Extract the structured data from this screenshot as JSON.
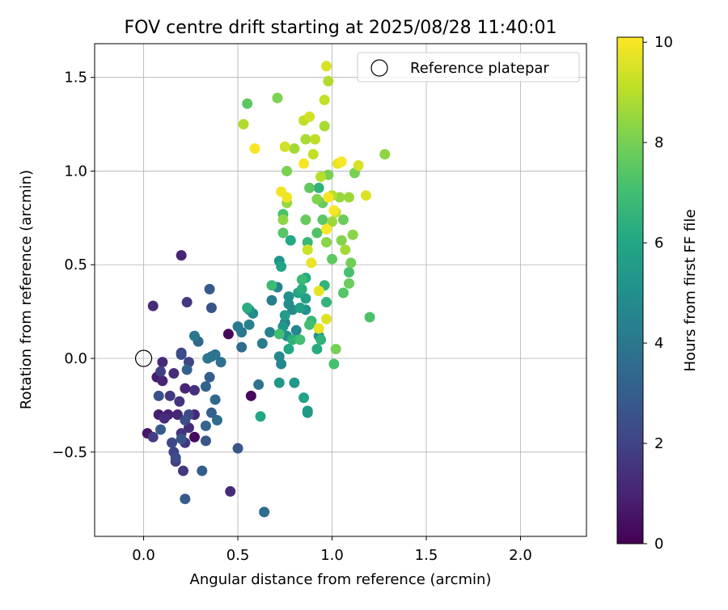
{
  "chart_data": {
    "type": "scatter",
    "title": "FOV centre drift starting at 2025/08/28 11:40:01",
    "xlabel": "Angular distance from reference (arcmin)",
    "ylabel": "Rotation from reference (arcmin)",
    "xlim": [
      -0.26,
      2.35
    ],
    "ylim": [
      -0.95,
      1.68
    ],
    "xticks": [
      "0.0",
      "0.5",
      "1.0",
      "1.5",
      "2.0"
    ],
    "xtick_values": [
      0,
      0.5,
      1.0,
      1.5,
      2.0
    ],
    "yticks": [
      "1.5",
      "1.0",
      "0.5",
      "0.0",
      "−0.5"
    ],
    "ytick_values": [
      1.5,
      1.0,
      0.5,
      0.0,
      -0.5
    ],
    "grid": true,
    "legend": {
      "position": "top-right",
      "entries": [
        "Reference platepar"
      ]
    },
    "reference_point": {
      "x": 0.0,
      "y": 0.0,
      "label": "Reference platepar"
    },
    "colorbar": {
      "label": "Hours from first FF file",
      "colormap": "viridis",
      "range": [
        0,
        10.1
      ],
      "ticks": [
        "0",
        "2",
        "4",
        "6",
        "8",
        "10"
      ],
      "tick_values": [
        0,
        2,
        4,
        6,
        8,
        10
      ]
    },
    "points": [
      {
        "x": 0.45,
        "y": 0.13,
        "h": 0.2
      },
      {
        "x": 0.57,
        "y": -0.2,
        "h": 0.2
      },
      {
        "x": 0.27,
        "y": -0.42,
        "h": 0.3
      },
      {
        "x": 0.02,
        "y": -0.4,
        "h": 0.6
      },
      {
        "x": 0.07,
        "y": -0.1,
        "h": 0.8
      },
      {
        "x": 0.08,
        "y": -0.3,
        "h": 0.8
      },
      {
        "x": 0.13,
        "y": -0.3,
        "h": 0.9
      },
      {
        "x": 0.1,
        "y": -0.12,
        "h": 1.0
      },
      {
        "x": 0.22,
        "y": -0.16,
        "h": 1.0
      },
      {
        "x": 0.2,
        "y": 0.55,
        "h": 1.0
      },
      {
        "x": 0.18,
        "y": -0.3,
        "h": 1.1
      },
      {
        "x": 0.27,
        "y": -0.3,
        "h": 1.1
      },
      {
        "x": 0.46,
        "y": -0.71,
        "h": 1.2
      },
      {
        "x": 0.05,
        "y": 0.28,
        "h": 1.2
      },
      {
        "x": 0.1,
        "y": -0.02,
        "h": 1.2
      },
      {
        "x": 0.11,
        "y": -0.32,
        "h": 1.3
      },
      {
        "x": 0.16,
        "y": -0.08,
        "h": 1.3
      },
      {
        "x": 0.24,
        "y": -0.37,
        "h": 1.3
      },
      {
        "x": 0.27,
        "y": -0.17,
        "h": 1.4
      },
      {
        "x": 0.19,
        "y": -0.23,
        "h": 1.5
      },
      {
        "x": 0.2,
        "y": -0.4,
        "h": 1.5
      },
      {
        "x": 0.22,
        "y": -0.45,
        "h": 1.6
      },
      {
        "x": 0.21,
        "y": -0.6,
        "h": 1.6
      },
      {
        "x": 0.23,
        "y": 0.3,
        "h": 1.7
      },
      {
        "x": 0.14,
        "y": -0.2,
        "h": 1.7
      },
      {
        "x": 0.17,
        "y": -0.55,
        "h": 1.8
      },
      {
        "x": 0.05,
        "y": -0.42,
        "h": 1.8
      },
      {
        "x": 0.09,
        "y": -0.07,
        "h": 1.9
      },
      {
        "x": 0.24,
        "y": -0.02,
        "h": 2.0
      },
      {
        "x": 0.16,
        "y": -0.5,
        "h": 2.0
      },
      {
        "x": 0.2,
        "y": 0.03,
        "h": 2.1
      },
      {
        "x": 0.15,
        "y": -0.45,
        "h": 2.2
      },
      {
        "x": 0.24,
        "y": -0.3,
        "h": 2.2
      },
      {
        "x": 0.17,
        "y": -0.53,
        "h": 2.3
      },
      {
        "x": 0.2,
        "y": 0.02,
        "h": 2.4
      },
      {
        "x": 0.22,
        "y": -0.33,
        "h": 2.4
      },
      {
        "x": 0.08,
        "y": -0.2,
        "h": 2.5
      },
      {
        "x": 0.36,
        "y": 0.27,
        "h": 2.6
      },
      {
        "x": 0.2,
        "y": -0.43,
        "h": 2.6
      },
      {
        "x": 0.33,
        "y": -0.44,
        "h": 2.7
      },
      {
        "x": 0.5,
        "y": -0.48,
        "h": 2.7
      },
      {
        "x": 0.35,
        "y": 0.37,
        "h": 2.8
      },
      {
        "x": 0.22,
        "y": -0.75,
        "h": 2.9
      },
      {
        "x": 0.09,
        "y": -0.38,
        "h": 2.9
      },
      {
        "x": 0.35,
        "y": -0.1,
        "h": 3.0
      },
      {
        "x": 0.31,
        "y": -0.6,
        "h": 3.0
      },
      {
        "x": 0.36,
        "y": -0.29,
        "h": 3.1
      },
      {
        "x": 0.23,
        "y": -0.06,
        "h": 3.1
      },
      {
        "x": 0.33,
        "y": -0.15,
        "h": 3.2
      },
      {
        "x": 0.29,
        "y": 0.09,
        "h": 3.3
      },
      {
        "x": 0.33,
        "y": -0.36,
        "h": 3.3
      },
      {
        "x": 0.38,
        "y": -0.22,
        "h": 3.4
      },
      {
        "x": 0.39,
        "y": -0.33,
        "h": 3.5
      },
      {
        "x": 0.52,
        "y": 0.06,
        "h": 3.5
      },
      {
        "x": 0.64,
        "y": -0.82,
        "h": 3.6
      },
      {
        "x": 0.36,
        "y": 0.01,
        "h": 3.6
      },
      {
        "x": 0.41,
        "y": -0.02,
        "h": 3.7
      },
      {
        "x": 0.38,
        "y": 0.02,
        "h": 3.8
      },
      {
        "x": 0.61,
        "y": -0.14,
        "h": 3.8
      },
      {
        "x": 0.34,
        "y": -0.0,
        "h": 3.9
      },
      {
        "x": 0.52,
        "y": 0.14,
        "h": 4.0
      },
      {
        "x": 0.27,
        "y": 0.12,
        "h": 4.0
      },
      {
        "x": 0.5,
        "y": 0.17,
        "h": 4.1
      },
      {
        "x": 0.56,
        "y": 0.26,
        "h": 4.2
      },
      {
        "x": 0.63,
        "y": 0.08,
        "h": 4.2
      },
      {
        "x": 0.75,
        "y": 0.19,
        "h": 4.3
      },
      {
        "x": 0.68,
        "y": 0.31,
        "h": 4.3
      },
      {
        "x": 0.56,
        "y": 0.18,
        "h": 4.4
      },
      {
        "x": 0.67,
        "y": 0.14,
        "h": 4.5
      },
      {
        "x": 0.71,
        "y": 0.38,
        "h": 4.5
      },
      {
        "x": 0.81,
        "y": 0.15,
        "h": 4.6
      },
      {
        "x": 0.73,
        "y": -0.03,
        "h": 4.6
      },
      {
        "x": 0.79,
        "y": 0.26,
        "h": 4.7
      },
      {
        "x": 0.72,
        "y": 0.01,
        "h": 4.8
      },
      {
        "x": 0.77,
        "y": 0.29,
        "h": 4.8
      },
      {
        "x": 0.58,
        "y": 0.24,
        "h": 4.9
      },
      {
        "x": 0.76,
        "y": 0.12,
        "h": 5.0
      },
      {
        "x": 0.77,
        "y": 0.33,
        "h": 5.0
      },
      {
        "x": 0.86,
        "y": 0.26,
        "h": 5.1
      },
      {
        "x": 0.93,
        "y": 0.12,
        "h": 5.1
      },
      {
        "x": 0.72,
        "y": 0.52,
        "h": 5.2
      },
      {
        "x": 0.74,
        "y": 0.17,
        "h": 5.3
      },
      {
        "x": 0.72,
        "y": -0.13,
        "h": 5.3
      },
      {
        "x": 0.8,
        "y": -0.13,
        "h": 5.4
      },
      {
        "x": 0.87,
        "y": -0.28,
        "h": 5.5
      },
      {
        "x": 0.87,
        "y": -0.29,
        "h": 5.5
      },
      {
        "x": 0.75,
        "y": 0.23,
        "h": 5.6
      },
      {
        "x": 0.86,
        "y": 0.32,
        "h": 5.7
      },
      {
        "x": 0.83,
        "y": 0.27,
        "h": 5.7
      },
      {
        "x": 0.85,
        "y": -0.21,
        "h": 5.8
      },
      {
        "x": 0.82,
        "y": 0.35,
        "h": 5.9
      },
      {
        "x": 0.73,
        "y": 0.49,
        "h": 5.9
      },
      {
        "x": 0.77,
        "y": 0.05,
        "h": 6.0
      },
      {
        "x": 0.62,
        "y": -0.31,
        "h": 6.0
      },
      {
        "x": 0.78,
        "y": 0.63,
        "h": 6.1
      },
      {
        "x": 0.92,
        "y": 0.05,
        "h": 6.2
      },
      {
        "x": 0.86,
        "y": 0.43,
        "h": 6.2
      },
      {
        "x": 0.84,
        "y": 0.37,
        "h": 6.3
      },
      {
        "x": 0.55,
        "y": 0.27,
        "h": 6.3
      },
      {
        "x": 0.79,
        "y": 0.1,
        "h": 6.4
      },
      {
        "x": 0.94,
        "y": 0.1,
        "h": 6.5
      },
      {
        "x": 0.93,
        "y": 0.91,
        "h": 6.5
      },
      {
        "x": 0.96,
        "y": 0.39,
        "h": 6.6
      },
      {
        "x": 0.97,
        "y": 0.3,
        "h": 6.6
      },
      {
        "x": 0.89,
        "y": 0.2,
        "h": 6.7
      },
      {
        "x": 0.87,
        "y": 0.62,
        "h": 6.7
      },
      {
        "x": 0.84,
        "y": 0.42,
        "h": 6.8
      },
      {
        "x": 0.68,
        "y": 0.39,
        "h": 6.9
      },
      {
        "x": 0.83,
        "y": 0.1,
        "h": 7.0
      },
      {
        "x": 0.88,
        "y": 0.18,
        "h": 7.0
      },
      {
        "x": 0.72,
        "y": 0.13,
        "h": 7.0
      },
      {
        "x": 1.01,
        "y": -0.03,
        "h": 7.1
      },
      {
        "x": 1.09,
        "y": 0.46,
        "h": 7.1
      },
      {
        "x": 1.2,
        "y": 0.22,
        "h": 7.2
      },
      {
        "x": 0.74,
        "y": 0.77,
        "h": 7.2
      },
      {
        "x": 0.92,
        "y": 0.67,
        "h": 7.3
      },
      {
        "x": 0.74,
        "y": 0.67,
        "h": 7.4
      },
      {
        "x": 1.06,
        "y": 0.35,
        "h": 7.4
      },
      {
        "x": 0.55,
        "y": 1.36,
        "h": 7.5
      },
      {
        "x": 0.95,
        "y": 0.74,
        "h": 7.5
      },
      {
        "x": 1.0,
        "y": 0.53,
        "h": 7.6
      },
      {
        "x": 0.88,
        "y": 0.91,
        "h": 7.6
      },
      {
        "x": 0.86,
        "y": 0.74,
        "h": 7.7
      },
      {
        "x": 0.95,
        "y": 0.83,
        "h": 7.7
      },
      {
        "x": 1.06,
        "y": 0.74,
        "h": 7.8
      },
      {
        "x": 1.09,
        "y": 0.4,
        "h": 7.8
      },
      {
        "x": 1.1,
        "y": 0.51,
        "h": 7.9
      },
      {
        "x": 1.02,
        "y": 0.05,
        "h": 8.0
      },
      {
        "x": 1.12,
        "y": 0.99,
        "h": 8.0
      },
      {
        "x": 0.98,
        "y": 0.98,
        "h": 8.0
      },
      {
        "x": 0.76,
        "y": 1.0,
        "h": 8.1
      },
      {
        "x": 0.71,
        "y": 1.39,
        "h": 8.1
      },
      {
        "x": 0.92,
        "y": 0.85,
        "h": 8.2
      },
      {
        "x": 1.05,
        "y": 0.63,
        "h": 8.2
      },
      {
        "x": 0.97,
        "y": 0.62,
        "h": 8.3
      },
      {
        "x": 1.11,
        "y": 0.66,
        "h": 8.3
      },
      {
        "x": 0.74,
        "y": 0.74,
        "h": 8.4
      },
      {
        "x": 1.28,
        "y": 1.09,
        "h": 8.4
      },
      {
        "x": 0.76,
        "y": 0.83,
        "h": 8.5
      },
      {
        "x": 1.04,
        "y": 0.86,
        "h": 8.5
      },
      {
        "x": 1.09,
        "y": 0.86,
        "h": 8.6
      },
      {
        "x": 1.0,
        "y": 0.73,
        "h": 8.6
      },
      {
        "x": 1.07,
        "y": 0.58,
        "h": 8.7
      },
      {
        "x": 0.8,
        "y": 1.12,
        "h": 8.7
      },
      {
        "x": 0.96,
        "y": 1.24,
        "h": 8.8
      },
      {
        "x": 0.86,
        "y": 1.17,
        "h": 8.8
      },
      {
        "x": 0.53,
        "y": 1.25,
        "h": 8.9
      },
      {
        "x": 0.98,
        "y": 1.48,
        "h": 8.9
      },
      {
        "x": 0.94,
        "y": 0.97,
        "h": 9.0
      },
      {
        "x": 1.0,
        "y": 0.87,
        "h": 9.0
      },
      {
        "x": 0.85,
        "y": 1.27,
        "h": 9.1
      },
      {
        "x": 0.91,
        "y": 1.17,
        "h": 9.1
      },
      {
        "x": 0.96,
        "y": 1.38,
        "h": 9.2
      },
      {
        "x": 0.9,
        "y": 1.09,
        "h": 9.2
      },
      {
        "x": 0.87,
        "y": 0.58,
        "h": 9.3
      },
      {
        "x": 1.02,
        "y": 0.78,
        "h": 9.3
      },
      {
        "x": 0.88,
        "y": 1.29,
        "h": 9.4
      },
      {
        "x": 0.75,
        "y": 1.13,
        "h": 9.4
      },
      {
        "x": 1.14,
        "y": 1.03,
        "h": 9.5
      },
      {
        "x": 0.97,
        "y": 1.56,
        "h": 9.5
      },
      {
        "x": 1.18,
        "y": 0.87,
        "h": 9.6
      },
      {
        "x": 0.97,
        "y": 0.21,
        "h": 9.6
      },
      {
        "x": 0.93,
        "y": 0.36,
        "h": 9.7
      },
      {
        "x": 1.03,
        "y": 1.04,
        "h": 9.7
      },
      {
        "x": 0.89,
        "y": 0.51,
        "h": 9.8
      },
      {
        "x": 0.93,
        "y": 0.16,
        "h": 9.8
      },
      {
        "x": 0.73,
        "y": 0.89,
        "h": 9.9
      },
      {
        "x": 0.76,
        "y": 0.86,
        "h": 9.9
      },
      {
        "x": 0.85,
        "y": 1.04,
        "h": 10.0
      },
      {
        "x": 0.98,
        "y": 0.86,
        "h": 10.0
      },
      {
        "x": 0.59,
        "y": 1.12,
        "h": 10.0
      },
      {
        "x": 0.97,
        "y": 0.69,
        "h": 10.0
      },
      {
        "x": 1.01,
        "y": 0.79,
        "h": 10.0
      },
      {
        "x": 1.05,
        "y": 1.05,
        "h": 10.0
      }
    ]
  }
}
